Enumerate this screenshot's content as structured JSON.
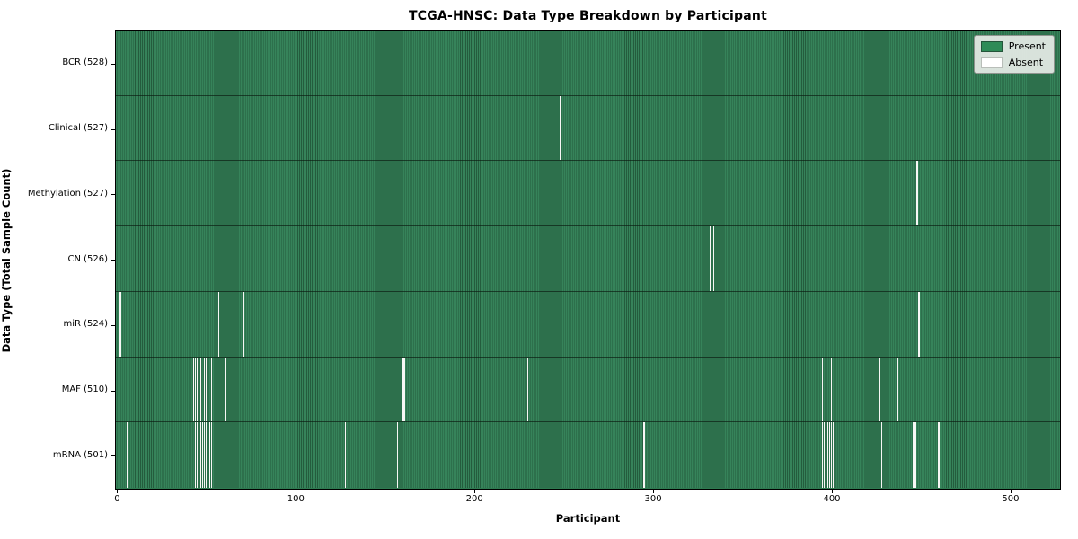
{
  "chart_data": {
    "type": "heatmap",
    "title": "TCGA-HNSC: Data Type Breakdown by Participant",
    "xlabel": "Participant",
    "ylabel": "Data Type (Total Sample Count)",
    "n_participants": 528,
    "x_ticks": [
      0,
      100,
      200,
      300,
      400,
      500
    ],
    "grid": false,
    "legend_position": "upper right",
    "colors": {
      "present": "#2e8b57",
      "present_stripe_dark": "#245c3d",
      "absent": "#f7f7f5",
      "plot_border": "#000000"
    },
    "legend": [
      {
        "label": "Present",
        "color": "#2e8b57"
      },
      {
        "label": "Absent",
        "color": "#ffffff"
      }
    ],
    "rows": [
      {
        "label": "BCR (528)",
        "data_type": "BCR",
        "present_count": 528,
        "absent_count": 0,
        "absent_participants": []
      },
      {
        "label": "Clinical (527)",
        "data_type": "Clinical",
        "present_count": 527,
        "absent_count": 1,
        "absent_participants": [
          248
        ]
      },
      {
        "label": "Methylation (527)",
        "data_type": "Methylation",
        "present_count": 527,
        "absent_count": 1,
        "absent_participants": [
          448
        ]
      },
      {
        "label": "CN (526)",
        "data_type": "CN",
        "present_count": 526,
        "absent_count": 2,
        "absent_participants": [
          332,
          334
        ]
      },
      {
        "label": "miR (524)",
        "data_type": "miR",
        "present_count": 524,
        "absent_count": 4,
        "absent_participants": [
          2,
          57,
          71,
          449
        ]
      },
      {
        "label": "MAF (510)",
        "data_type": "MAF",
        "present_count": 510,
        "absent_count": 18,
        "absent_participants": [
          43,
          44,
          45,
          46,
          47,
          49,
          50,
          53,
          61,
          160,
          161,
          230,
          308,
          323,
          395,
          400,
          427,
          437
        ]
      },
      {
        "label": "mRNA (501)",
        "data_type": "mRNA",
        "present_count": 501,
        "absent_count": 27,
        "absent_participants": [
          6,
          31,
          44,
          45,
          46,
          47,
          48,
          49,
          50,
          51,
          52,
          53,
          125,
          128,
          157,
          295,
          308,
          395,
          396,
          398,
          399,
          400,
          401,
          428,
          446,
          447,
          460
        ]
      }
    ]
  }
}
